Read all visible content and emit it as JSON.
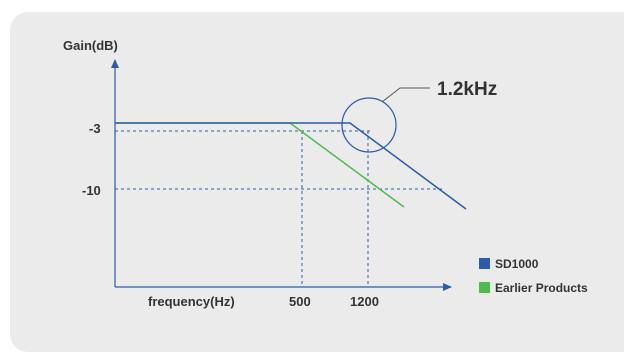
{
  "chart_data": {
    "type": "line",
    "ylabel": "Gain(dB)",
    "xlabel": "frequency(Hz)",
    "y_ticks": [
      "-3",
      "-10"
    ],
    "x_ticks": [
      "500",
      "1200"
    ],
    "annotation": "1.2kHz",
    "series": [
      {
        "name": "SD1000",
        "color": "#2a5cad",
        "points": [
          {
            "x": 0,
            "y": 0
          },
          {
            "x": 1050,
            "y": 0
          },
          {
            "x": 1200,
            "y": -3
          },
          {
            "x": 1200,
            "y": -3
          },
          {
            "x": 1700,
            "y": -17
          }
        ]
      },
      {
        "name": "Earlier Products",
        "color": "#4cbc4c",
        "points": [
          {
            "x": 0,
            "y": 0
          },
          {
            "x": 450,
            "y": 0
          },
          {
            "x": 500,
            "y": -3
          },
          {
            "x": 1200,
            "y": -10
          },
          {
            "x": 1300,
            "y": -13
          }
        ]
      }
    ]
  },
  "colors": {
    "axis": "#2a5cad",
    "panel": "#ebebeb",
    "text": "#333333"
  }
}
